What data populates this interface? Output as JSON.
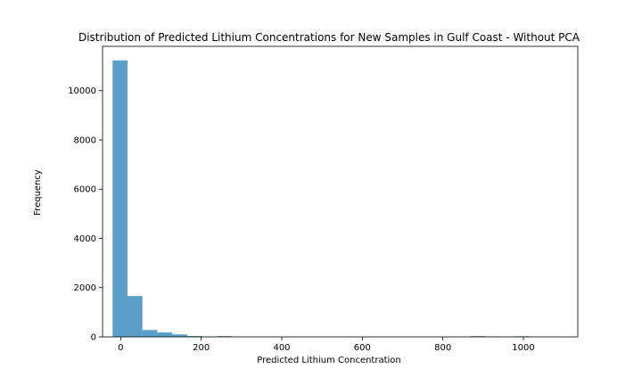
{
  "chart_data": {
    "type": "bar",
    "title": "Distribution of Predicted Lithium Concentrations for New Samples in Gulf Coast - Without PCA",
    "xlabel": "Predicted Lithium Concentration",
    "ylabel": "Frequency",
    "xlim": [
      -45,
      1135
    ],
    "ylim": [
      0,
      11800
    ],
    "xticks": [
      0,
      200,
      400,
      600,
      800,
      1000
    ],
    "yticks": [
      0,
      2000,
      4000,
      6000,
      8000,
      10000
    ],
    "bar_color": "#5b9ec9",
    "bins": [
      {
        "x0": -20,
        "x1": 17,
        "count": 11230
      },
      {
        "x0": 17,
        "x1": 54,
        "count": 1660
      },
      {
        "x0": 54,
        "x1": 91,
        "count": 280
      },
      {
        "x0": 91,
        "x1": 128,
        "count": 180
      },
      {
        "x0": 128,
        "x1": 165,
        "count": 100
      },
      {
        "x0": 165,
        "x1": 202,
        "count": 35
      },
      {
        "x0": 202,
        "x1": 239,
        "count": 15
      },
      {
        "x0": 239,
        "x1": 276,
        "count": 30
      },
      {
        "x0": 276,
        "x1": 313,
        "count": 8
      },
      {
        "x0": 313,
        "x1": 350,
        "count": 5
      },
      {
        "x0": 350,
        "x1": 387,
        "count": 4
      },
      {
        "x0": 387,
        "x1": 424,
        "count": 3
      },
      {
        "x0": 424,
        "x1": 461,
        "count": 3
      },
      {
        "x0": 461,
        "x1": 498,
        "count": 2
      },
      {
        "x0": 498,
        "x1": 535,
        "count": 2
      },
      {
        "x0": 535,
        "x1": 572,
        "count": 2
      },
      {
        "x0": 572,
        "x1": 609,
        "count": 2
      },
      {
        "x0": 609,
        "x1": 646,
        "count": 2
      },
      {
        "x0": 646,
        "x1": 683,
        "count": 2
      },
      {
        "x0": 683,
        "x1": 720,
        "count": 2
      },
      {
        "x0": 720,
        "x1": 757,
        "count": 2
      },
      {
        "x0": 757,
        "x1": 794,
        "count": 2
      },
      {
        "x0": 794,
        "x1": 831,
        "count": 2
      },
      {
        "x0": 831,
        "x1": 868,
        "count": 5
      },
      {
        "x0": 868,
        "x1": 905,
        "count": 30
      },
      {
        "x0": 905,
        "x1": 942,
        "count": 20
      },
      {
        "x0": 942,
        "x1": 979,
        "count": 5
      },
      {
        "x0": 979,
        "x1": 1016,
        "count": 25
      },
      {
        "x0": 1016,
        "x1": 1053,
        "count": 3
      },
      {
        "x0": 1053,
        "x1": 1090,
        "count": 2
      }
    ]
  }
}
